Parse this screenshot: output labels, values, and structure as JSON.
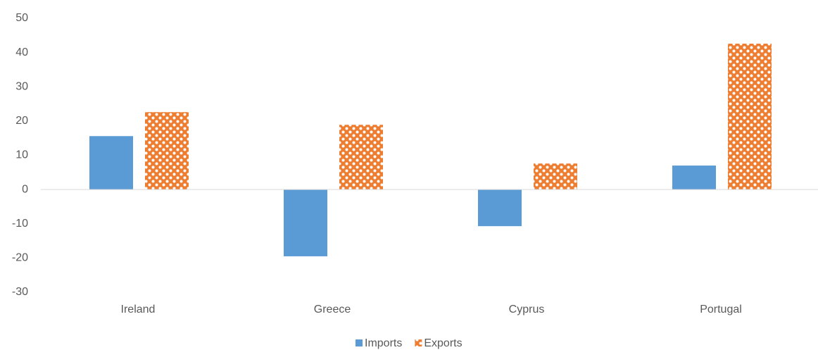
{
  "chart_data": {
    "type": "bar",
    "categories": [
      "Ireland",
      "Greece",
      "Cyprus",
      "Portugal"
    ],
    "series": [
      {
        "name": "Imports",
        "color": "#5b9bd5",
        "values": [
          15.6,
          -19.5,
          -10.7,
          7.0
        ]
      },
      {
        "name": "Exports",
        "color": "#ed7d31",
        "values": [
          22.6,
          18.9,
          7.6,
          42.6
        ],
        "pattern": true
      }
    ],
    "ylim": [
      -30,
      50
    ],
    "yticks": [
      -30,
      -20,
      -10,
      0,
      10,
      20,
      30,
      40,
      50
    ],
    "grid": false,
    "legend": "bottom"
  }
}
